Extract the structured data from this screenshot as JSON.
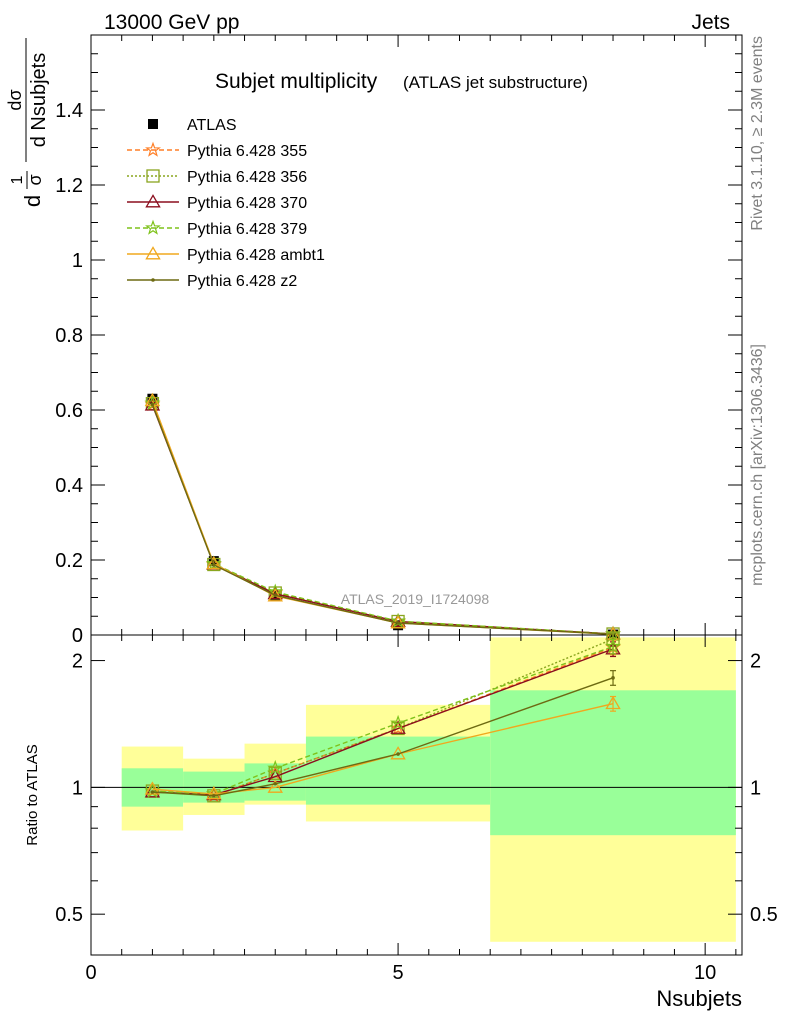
{
  "header": {
    "left": "13000 GeV pp",
    "right": "Jets"
  },
  "side_labels": {
    "top": "Rivet 3.1.10, ≥ 2.3M events",
    "bottom": "mcplots.cern.ch [arXiv:1306.3436]"
  },
  "title": {
    "main": "Subjet multiplicity",
    "sub": "(ATLAS jet substructure)"
  },
  "watermark": "ATLAS_2019_I1724098",
  "ylabel_top": {
    "frac_num": "1",
    "frac_den": "σ",
    "d_num": "dσ",
    "d_den": "d Nsubjets",
    "prefix": "d"
  },
  "ylabel_bottom": "Ratio to ATLAS",
  "xlabel": "Nsubjets",
  "colors": {
    "data": "#000000",
    "band_inner": "#99ff99",
    "band_outer": "#ffff99",
    "p355": "#ff7f27",
    "p356": "#8aa51f",
    "p370": "#8b0e1e",
    "p379": "#7ec21a",
    "ambt1": "#f0a81e",
    "z2": "#6d6a12"
  },
  "chart_data": [
    {
      "type": "line",
      "panel": "main",
      "xlim": [
        0,
        10.6
      ],
      "ylim": [
        0,
        1.6
      ],
      "yticks": [
        "0",
        "0.2",
        "0.4",
        "0.6",
        "0.8",
        "1",
        "1.2",
        "1.4"
      ],
      "ytick_values": [
        0,
        0.2,
        0.4,
        0.6,
        0.8,
        1.0,
        1.2,
        1.4
      ],
      "x": [
        1,
        2,
        3,
        5,
        8.5
      ],
      "legend_position": "top-left",
      "series": [
        {
          "name": "ATLAS",
          "key": "data",
          "marker": "square",
          "style": "none",
          "values": [
            0.63,
            0.197,
            0.104,
            0.026,
            0.0012
          ]
        },
        {
          "name": "Pythia 6.428 355",
          "key": "p355",
          "marker": "star",
          "style": "dashed",
          "values": [
            0.615,
            0.188,
            0.112,
            0.036,
            0.0026
          ]
        },
        {
          "name": "Pythia 6.428 356",
          "key": "p356",
          "marker": "open-square",
          "style": "dotted",
          "values": [
            0.617,
            0.188,
            0.112,
            0.036,
            0.0027
          ]
        },
        {
          "name": "Pythia 6.428 370",
          "key": "p370",
          "marker": "open-triangle",
          "style": "solid",
          "values": [
            0.613,
            0.189,
            0.11,
            0.036,
            0.0026
          ]
        },
        {
          "name": "Pythia 6.428 379",
          "key": "p379",
          "marker": "star",
          "style": "dashed",
          "values": [
            0.618,
            0.19,
            0.115,
            0.037,
            0.0026
          ]
        },
        {
          "name": "Pythia 6.428 ambt1",
          "key": "ambt1",
          "marker": "open-triangle",
          "style": "solid",
          "values": [
            0.625,
            0.19,
            0.104,
            0.032,
            0.002
          ]
        },
        {
          "name": "Pythia 6.428 z2",
          "key": "z2",
          "marker": "dot",
          "style": "solid",
          "values": [
            0.615,
            0.187,
            0.106,
            0.032,
            0.0022
          ]
        }
      ]
    },
    {
      "type": "line",
      "panel": "ratio",
      "xlim": [
        0,
        10.6
      ],
      "ylim": [
        0.4,
        2.3
      ],
      "yscale": "log",
      "yticks": [
        "0.5",
        "1",
        "2"
      ],
      "ytick_values": [
        0.5,
        1,
        2
      ],
      "xticks": [
        "0",
        "5",
        "10"
      ],
      "xtick_values": [
        0,
        5,
        10
      ],
      "bands": [
        {
          "x0": 0.5,
          "x1": 1.5,
          "inner": [
            0.9,
            1.11
          ],
          "outer": [
            0.79,
            1.25
          ]
        },
        {
          "x0": 1.5,
          "x1": 2.5,
          "inner": [
            0.92,
            1.09
          ],
          "outer": [
            0.86,
            1.17
          ]
        },
        {
          "x0": 2.5,
          "x1": 3.5,
          "inner": [
            0.93,
            1.14
          ],
          "outer": [
            0.91,
            1.27
          ]
        },
        {
          "x0": 3.5,
          "x1": 6.5,
          "inner": [
            0.91,
            1.32
          ],
          "outer": [
            0.83,
            1.57
          ]
        },
        {
          "x0": 6.5,
          "x1": 10.5,
          "inner": [
            0.77,
            1.7
          ],
          "outer": [
            0.43,
            2.27
          ]
        }
      ],
      "x": [
        1,
        2,
        3,
        5,
        8.5
      ],
      "series": [
        {
          "key": "p355",
          "values": [
            0.98,
            0.955,
            1.08,
            1.38,
            2.15
          ]
        },
        {
          "key": "p356",
          "values": [
            0.98,
            0.955,
            1.08,
            1.38,
            2.25
          ]
        },
        {
          "key": "p370",
          "values": [
            0.975,
            0.96,
            1.06,
            1.38,
            2.13
          ]
        },
        {
          "key": "p379",
          "values": [
            0.98,
            0.965,
            1.11,
            1.42,
            2.16
          ]
        },
        {
          "key": "ambt1",
          "values": [
            0.99,
            0.965,
            1.0,
            1.2,
            1.58
          ]
        },
        {
          "key": "z2",
          "values": [
            0.975,
            0.955,
            1.02,
            1.2,
            1.82
          ]
        }
      ]
    }
  ]
}
